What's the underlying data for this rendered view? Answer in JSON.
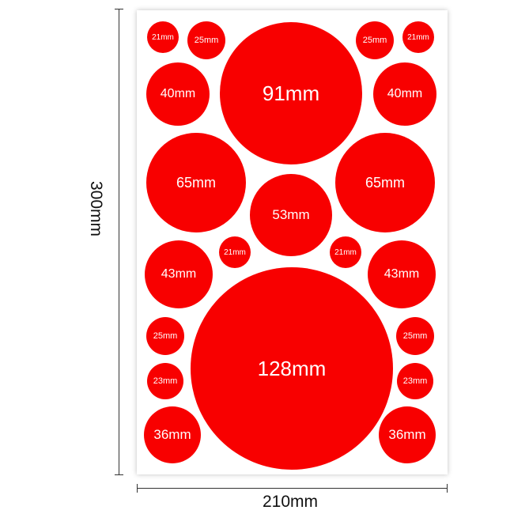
{
  "sheet": {
    "color": "#f80000",
    "stickers": [
      {
        "label": "21mm",
        "size_mm": 21
      },
      {
        "label": "25mm",
        "size_mm": 25
      },
      {
        "label": "91mm",
        "size_mm": 91
      },
      {
        "label": "25mm",
        "size_mm": 25
      },
      {
        "label": "21mm",
        "size_mm": 21
      },
      {
        "label": "40mm",
        "size_mm": 40
      },
      {
        "label": "40mm",
        "size_mm": 40
      },
      {
        "label": "65mm",
        "size_mm": 65
      },
      {
        "label": "65mm",
        "size_mm": 65
      },
      {
        "label": "53mm",
        "size_mm": 53
      },
      {
        "label": "21mm",
        "size_mm": 21
      },
      {
        "label": "21mm",
        "size_mm": 21
      },
      {
        "label": "43mm",
        "size_mm": 43
      },
      {
        "label": "43mm",
        "size_mm": 43
      },
      {
        "label": "128mm",
        "size_mm": 128
      },
      {
        "label": "25mm",
        "size_mm": 25
      },
      {
        "label": "25mm",
        "size_mm": 25
      },
      {
        "label": "23mm",
        "size_mm": 23
      },
      {
        "label": "23mm",
        "size_mm": 23
      },
      {
        "label": "36mm",
        "size_mm": 36
      },
      {
        "label": "36mm",
        "size_mm": 36
      }
    ]
  },
  "dimensions": {
    "height": "300mm",
    "width": "210mm"
  }
}
